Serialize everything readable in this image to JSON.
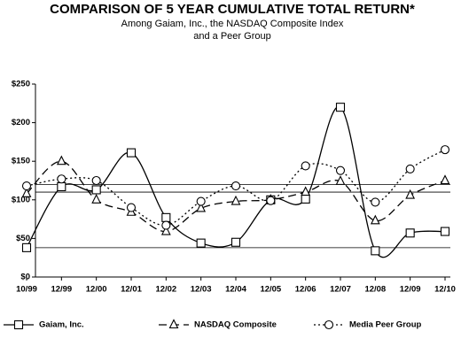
{
  "chart_data": {
    "type": "line",
    "title": "COMPARISON OF 5 YEAR CUMULATIVE TOTAL RETURN*",
    "subtitle": [
      "Among Gaiam, Inc., the NASDAQ Composite Index",
      "and a Peer Group"
    ],
    "categories": [
      "10/99",
      "12/99",
      "12/00",
      "12/01",
      "12/02",
      "12/03",
      "12/04",
      "12/05",
      "12/06",
      "12/07",
      "12/08",
      "12/09",
      "12/10"
    ],
    "series": [
      {
        "name": "Gaiam, Inc.",
        "color": "#000000",
        "line_style": "solid",
        "marker": "square",
        "values": [
          38,
          117,
          113,
          161,
          77,
          44,
          45,
          100,
          101,
          220,
          34,
          57,
          59
        ]
      },
      {
        "name": "NASDAQ Composite",
        "color": "#000000",
        "line_style": "dashed",
        "marker": "triangle",
        "values": [
          108,
          150,
          100,
          84,
          59,
          89,
          98,
          100,
          110,
          124,
          73,
          106,
          125
        ]
      },
      {
        "name": "Media Peer Group",
        "color": "#000000",
        "line_style": "dotted",
        "marker": "circle",
        "values": [
          118,
          127,
          125,
          90,
          67,
          98,
          118,
          99,
          144,
          138,
          97,
          140,
          165
        ]
      }
    ],
    "reference_lines": [
      120,
      110,
      38
    ],
    "ylim": [
      0,
      250
    ],
    "yticks": [
      {
        "value": 0,
        "label": "$0"
      },
      {
        "value": 50,
        "label": "$50"
      },
      {
        "value": 100,
        "label": "$100"
      },
      {
        "value": 150,
        "label": "$150"
      },
      {
        "value": 200,
        "label": "$200"
      },
      {
        "value": 250,
        "label": "$250"
      }
    ]
  }
}
